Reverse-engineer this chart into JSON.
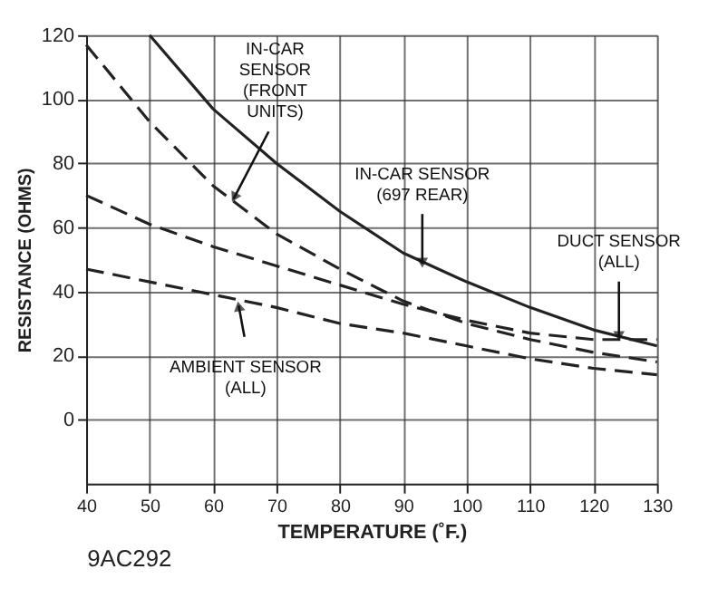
{
  "chart_data": {
    "type": "line",
    "xlabel": "TEMPERATURE (˚F.)",
    "ylabel": "RESISTANCE (OHMS)",
    "xlim": [
      40,
      130
    ],
    "ylim": [
      -20,
      120
    ],
    "xticks": [
      40,
      50,
      60,
      70,
      80,
      90,
      100,
      110,
      120,
      130
    ],
    "yticks": [
      0,
      20,
      40,
      60,
      80,
      100,
      120
    ],
    "grid": true,
    "marker": "none",
    "series": [
      {
        "color": "#222222",
        "line_style": "solid",
        "x": [
          50,
          60,
          70,
          80,
          90,
          100,
          110,
          120,
          130
        ],
        "values": [
          120,
          97,
          80,
          65,
          52,
          43,
          35,
          28,
          23
        ]
      },
      {
        "color": "#222222",
        "line_style": "dashed",
        "x": [
          40,
          50,
          60,
          70,
          80,
          90,
          100,
          110,
          120,
          130
        ],
        "values": [
          117,
          93,
          73,
          58,
          47,
          37,
          30,
          25,
          21,
          18
        ]
      },
      {
        "color": "#222222",
        "line_style": "dashed",
        "x": [
          40,
          50,
          60,
          70,
          80,
          90,
          100,
          110,
          120,
          130
        ],
        "values": [
          70,
          61,
          54,
          48,
          42,
          36,
          31,
          27,
          25,
          25
        ]
      },
      {
        "color": "#222222",
        "line_style": "dashed",
        "x": [
          40,
          50,
          60,
          70,
          80,
          90,
          100,
          110,
          120,
          130
        ],
        "values": [
          47,
          43,
          39,
          35,
          30,
          27,
          23,
          19,
          16,
          14
        ]
      }
    ],
    "annotations": [
      {
        "text": "IN-CAR\nSENSOR\n(FRONT\nUNITS)",
        "x": 63,
        "y": 68
      },
      {
        "text": "IN-CAR SENSOR\n(697 REAR)",
        "x": 93,
        "y": 48
      },
      {
        "text": "DUCT SENSOR\n(ALL)",
        "x": 124,
        "y": 25
      },
      {
        "text": "AMBIENT SENSOR\n(ALL)",
        "x": 64,
        "y": 36
      },
      "9AC292"
    ]
  }
}
